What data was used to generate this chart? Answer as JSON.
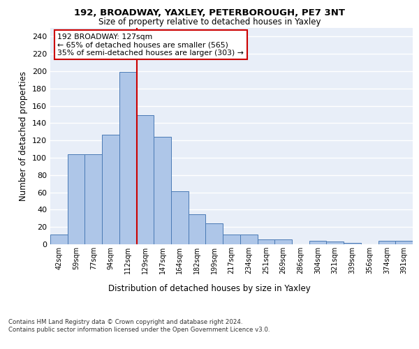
{
  "title1": "192, BROADWAY, YAXLEY, PETERBOROUGH, PE7 3NT",
  "title2": "Size of property relative to detached houses in Yaxley",
  "xlabel": "Distribution of detached houses by size in Yaxley",
  "ylabel": "Number of detached properties",
  "categories": [
    "42sqm",
    "59sqm",
    "77sqm",
    "94sqm",
    "112sqm",
    "129sqm",
    "147sqm",
    "164sqm",
    "182sqm",
    "199sqm",
    "217sqm",
    "234sqm",
    "251sqm",
    "269sqm",
    "286sqm",
    "304sqm",
    "321sqm",
    "339sqm",
    "356sqm",
    "374sqm",
    "391sqm"
  ],
  "values": [
    11,
    104,
    104,
    127,
    199,
    149,
    124,
    61,
    35,
    24,
    11,
    11,
    6,
    6,
    0,
    4,
    3,
    2,
    0,
    4,
    4
  ],
  "bar_color": "#aec6e8",
  "bar_edge_color": "#4a7ab5",
  "vline_x_index": 4.5,
  "vline_color": "#cc0000",
  "annotation_text": "192 BROADWAY: 127sqm\n← 65% of detached houses are smaller (565)\n35% of semi-detached houses are larger (303) →",
  "annotation_box_color": "#ffffff",
  "annotation_box_edge_color": "#cc0000",
  "ylim": [
    0,
    250
  ],
  "yticks": [
    0,
    20,
    40,
    60,
    80,
    100,
    120,
    140,
    160,
    180,
    200,
    220,
    240
  ],
  "background_color": "#e8eef8",
  "grid_color": "#ffffff",
  "footnote": "Contains HM Land Registry data © Crown copyright and database right 2024.\nContains public sector information licensed under the Open Government Licence v3.0."
}
